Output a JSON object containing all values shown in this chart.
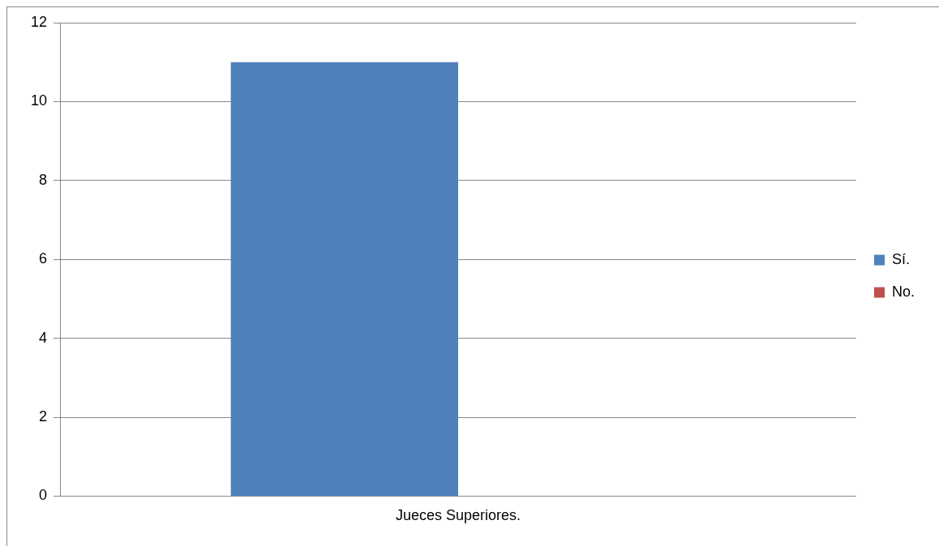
{
  "chart_data": {
    "type": "bar",
    "categories": [
      "Jueces Superiores."
    ],
    "series": [
      {
        "name": "Sí.",
        "color": "#4f81bd",
        "values": [
          11
        ]
      },
      {
        "name": "No.",
        "color": "#c0504d",
        "values": [
          0
        ]
      }
    ],
    "ylim": [
      0,
      12
    ],
    "yticks": [
      0,
      2,
      4,
      6,
      8,
      10,
      12
    ],
    "grid": "y",
    "legend": "right"
  }
}
